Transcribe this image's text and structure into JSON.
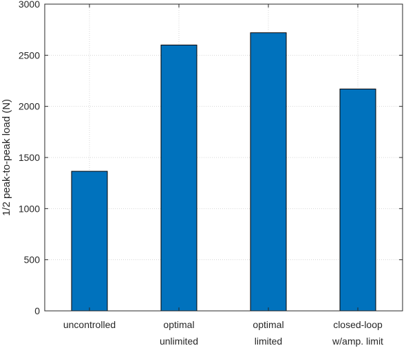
{
  "chart_data": {
    "type": "bar",
    "categories": [
      [
        "uncontrolled"
      ],
      [
        "optimal",
        "unlimited"
      ],
      [
        "optimal",
        "limited"
      ],
      [
        "closed-loop",
        "w/amp. limit"
      ]
    ],
    "values": [
      1365,
      2600,
      2720,
      2170
    ],
    "ylabel": "1/2 peak-to-peak load (N)",
    "ylim": [
      0,
      3000
    ],
    "yticks": [
      0,
      500,
      1000,
      1500,
      2000,
      2500,
      3000
    ],
    "grid": true,
    "bar_color": "#0072BD",
    "legend": "none"
  }
}
